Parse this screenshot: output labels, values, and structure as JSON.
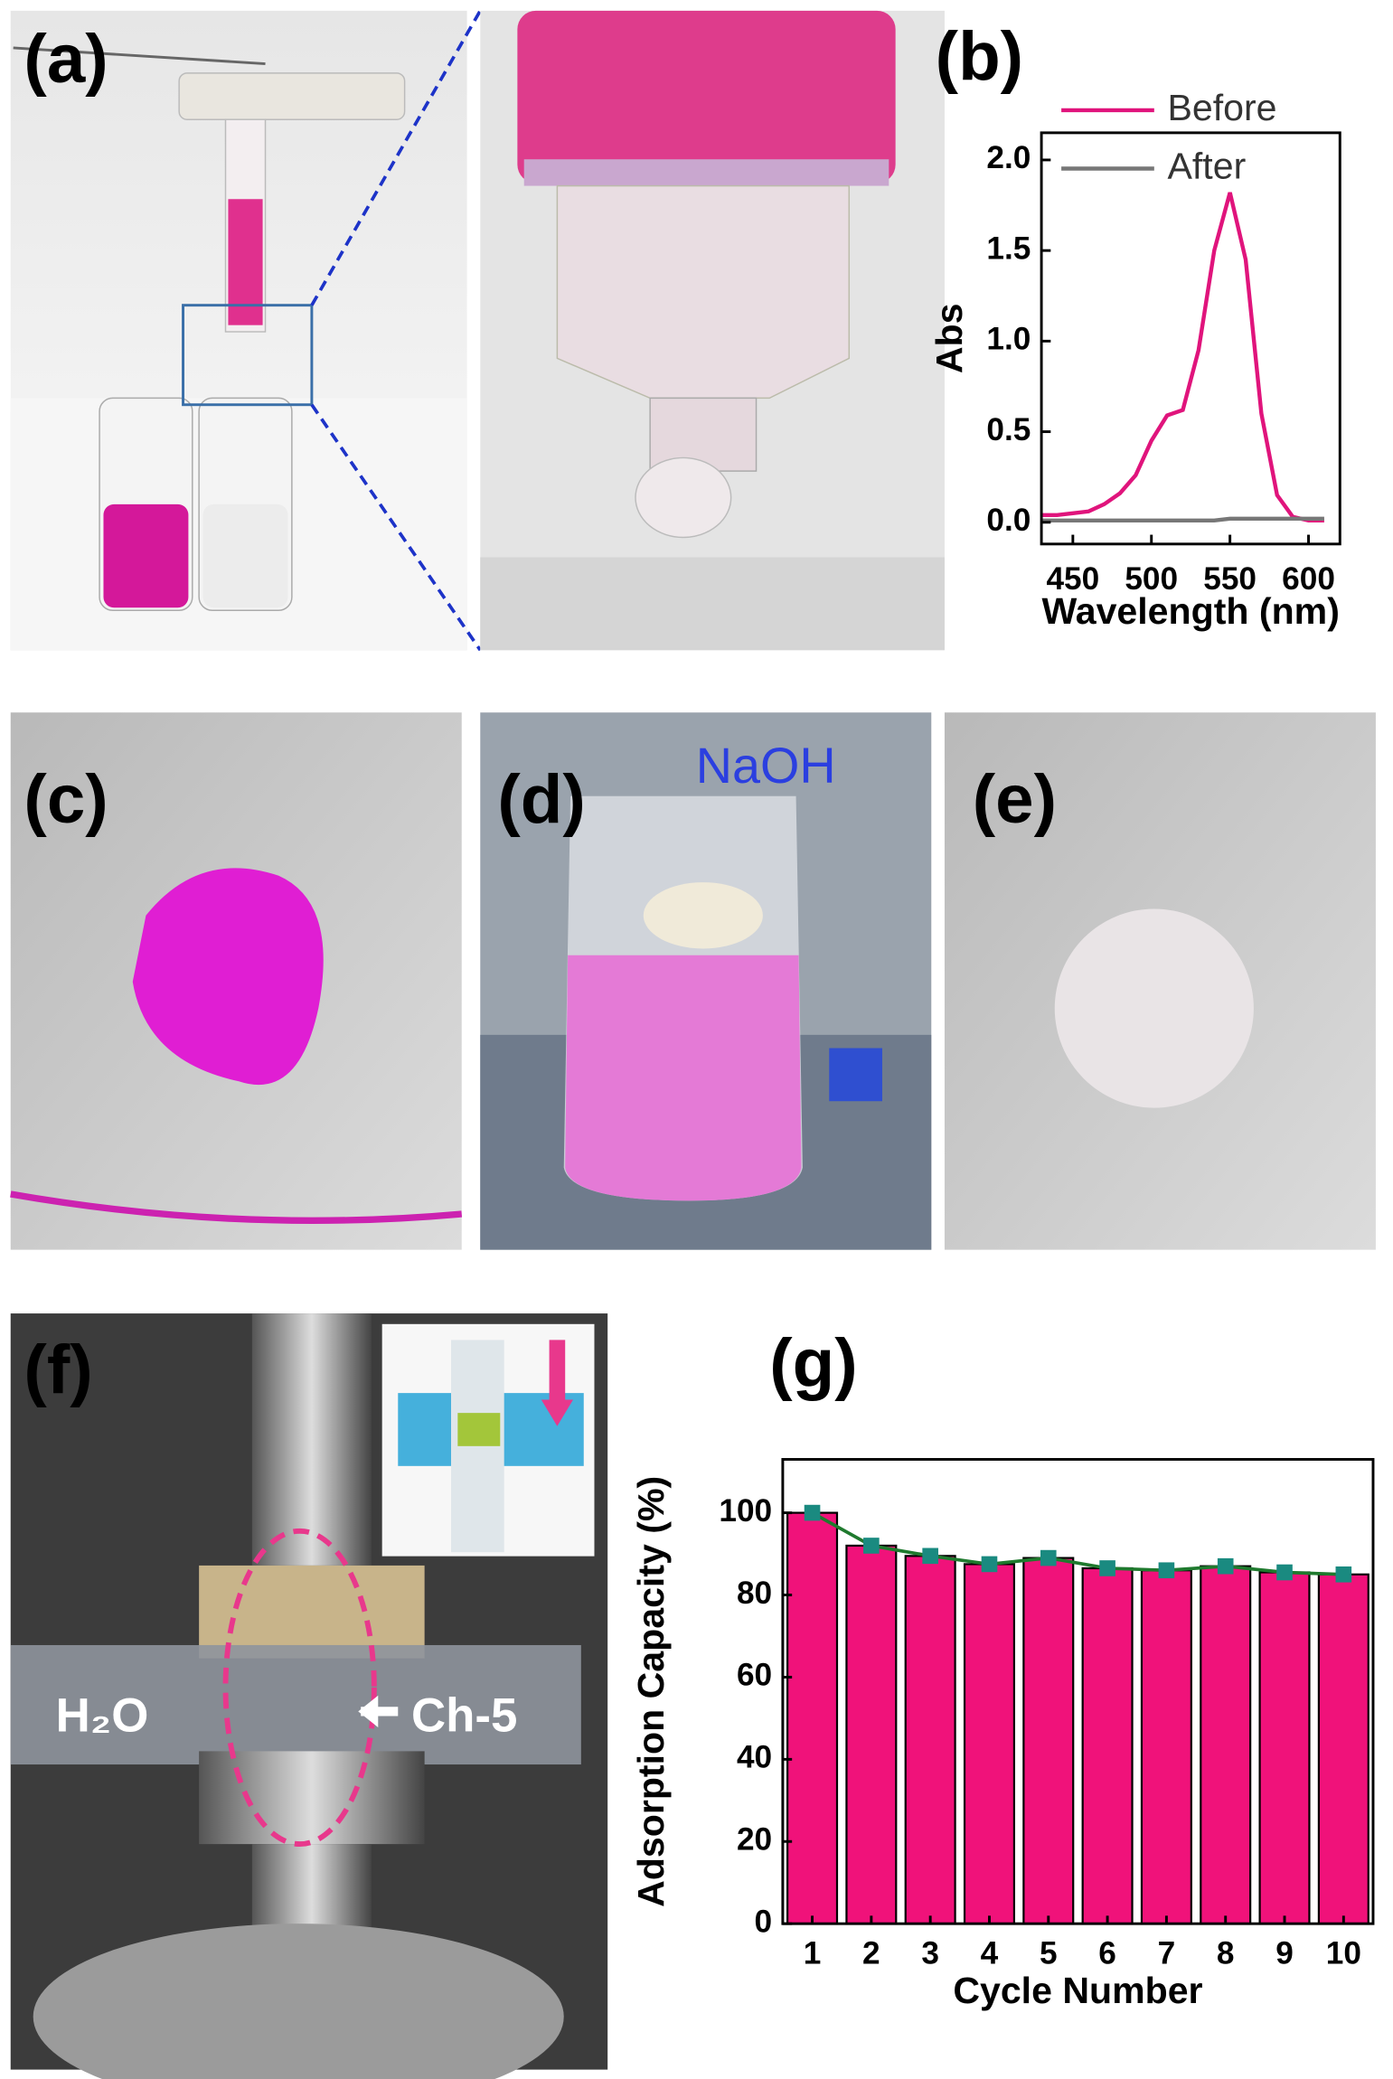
{
  "panels": {
    "a": "(a)",
    "c": "(c)",
    "d": "(d)",
    "e": "(e)",
    "f": "(f)"
  },
  "photo_text": {
    "naoh": "NaOH",
    "h2o": "H₂O",
    "ch5": "Ch-5"
  },
  "chart_data": [
    {
      "type": "line",
      "label": "(b)",
      "x_label": "Wavelength (nm)",
      "y_label": "Abs",
      "x": [
        430,
        440,
        450,
        460,
        470,
        480,
        490,
        500,
        510,
        520,
        530,
        540,
        550,
        560,
        570,
        580,
        590,
        600,
        610
      ],
      "series": [
        {
          "name": "Before",
          "color": "#e0147c",
          "values": [
            0.04,
            0.04,
            0.05,
            0.06,
            0.1,
            0.16,
            0.26,
            0.45,
            0.59,
            0.62,
            0.95,
            1.5,
            1.82,
            1.45,
            0.6,
            0.15,
            0.03,
            0.01,
            0.01
          ]
        },
        {
          "name": "After",
          "color": "#777777",
          "values": [
            0.01,
            0.01,
            0.01,
            0.01,
            0.01,
            0.01,
            0.01,
            0.01,
            0.01,
            0.01,
            0.01,
            0.01,
            0.02,
            0.02,
            0.02,
            0.02,
            0.02,
            0.02,
            0.02
          ]
        }
      ],
      "xlim": [
        430,
        620
      ],
      "xticks": [
        450,
        500,
        550,
        600
      ],
      "ylim": [
        -0.12,
        2.15
      ],
      "yticks": [
        {
          "value": 0,
          "label": "0.0"
        },
        {
          "value": 0.5,
          "label": "0.5"
        },
        {
          "value": 1,
          "label": "1.0"
        },
        {
          "value": 1.5,
          "label": "1.5"
        },
        {
          "value": 2,
          "label": "2.0"
        }
      ],
      "legend": "top-left"
    },
    {
      "type": "bar",
      "label": "(g)",
      "x_label": "Cycle Number",
      "y_label": "Adsorption Capacity (%)",
      "categories": [
        "1",
        "2",
        "3",
        "4",
        "5",
        "6",
        "7",
        "8",
        "9",
        "10"
      ],
      "values": [
        100,
        92,
        89.5,
        87.5,
        89,
        86.5,
        86,
        87,
        85.5,
        85
      ],
      "color": "#f0127a",
      "line_color": "#1f7a2e",
      "marker_color": "#1a8a80",
      "ylim": [
        0,
        113
      ],
      "yticks": [
        0,
        20,
        40,
        60,
        80,
        100
      ]
    }
  ]
}
